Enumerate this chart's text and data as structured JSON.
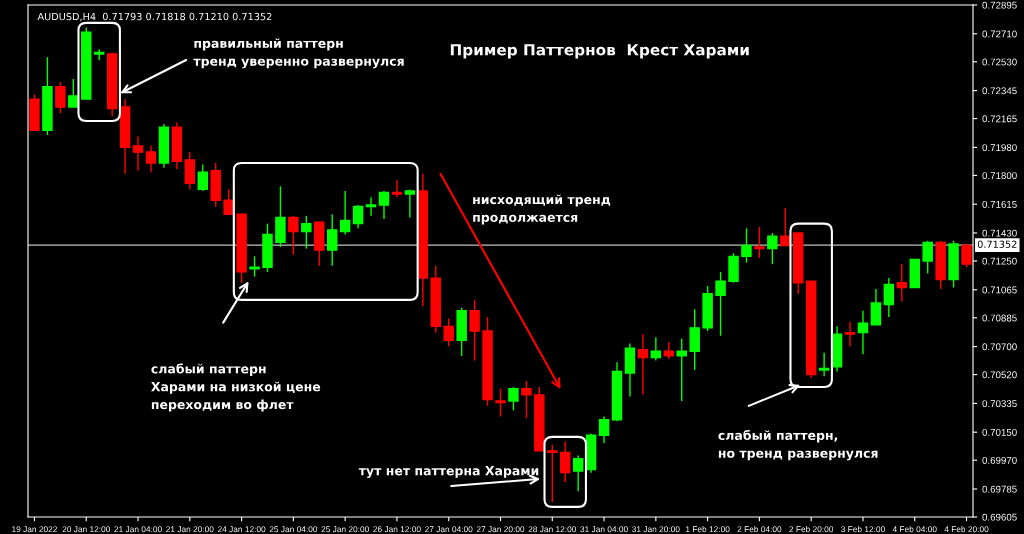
{
  "chart_data": {
    "type": "candlestick",
    "title": "Пример Паттернов  Крест Харами",
    "subtitle": "AUDUSD,H4  0.71793 0.71818 0.71210 0.71352",
    "categories": [
      "19 Jan 2022",
      null,
      null,
      null,
      "20 Jan 12:00",
      null,
      null,
      null,
      "21 Jan 04:00",
      null,
      null,
      null,
      "21 Jan 20:00",
      null,
      null,
      null,
      "24 Jan 12:00",
      null,
      null,
      null,
      "25 Jan 04:00",
      null,
      null,
      null,
      "25 Jan 20:00",
      null,
      null,
      null,
      "26 Jan 12:00",
      null,
      null,
      null,
      "27 Jan 04:00",
      null,
      null,
      null,
      "27 Jan 20:00",
      null,
      null,
      null,
      "28 Jan 12:00",
      null,
      null,
      null,
      "31 Jan 04:00",
      null,
      null,
      null,
      "31 Jan 20:00",
      null,
      null,
      null,
      "1 Feb 12:00",
      null,
      null,
      null,
      "2 Feb 04:00",
      null,
      null,
      null,
      "2 Feb 20:00",
      null,
      null,
      null,
      "3 Feb 12:00",
      null,
      null,
      null,
      "4 Feb 04:00",
      null,
      null,
      null,
      "4 Feb 20:00"
    ],
    "ohlc": [
      [
        0.7229,
        0.7232,
        0.7209,
        0.7209
      ],
      [
        0.7209,
        0.7256,
        0.7206,
        0.7237
      ],
      [
        0.7237,
        0.724,
        0.722,
        0.7224
      ],
      [
        0.7224,
        0.7242,
        0.7224,
        0.7231
      ],
      [
        0.7229,
        0.7275,
        0.7229,
        0.7272
      ],
      [
        0.7258,
        0.7261,
        0.7254,
        0.7259
      ],
      [
        0.7258,
        0.7259,
        0.7218,
        0.7223
      ],
      [
        0.7224,
        0.7229,
        0.7181,
        0.7198
      ],
      [
        0.7199,
        0.7205,
        0.7183,
        0.7195
      ],
      [
        0.7195,
        0.7199,
        0.7182,
        0.7188
      ],
      [
        0.7188,
        0.7213,
        0.7185,
        0.7211
      ],
      [
        0.7211,
        0.7214,
        0.7184,
        0.7189
      ],
      [
        0.719,
        0.7195,
        0.7171,
        0.7175
      ],
      [
        0.7171,
        0.7187,
        0.717,
        0.7182
      ],
      [
        0.7183,
        0.7188,
        0.716,
        0.7164
      ],
      [
        0.7164,
        0.7171,
        0.7155,
        0.7155
      ],
      [
        0.7155,
        0.7155,
        0.7111,
        0.7118
      ],
      [
        0.712,
        0.7128,
        0.7115,
        0.7121
      ],
      [
        0.7121,
        0.7149,
        0.7118,
        0.7142
      ],
      [
        0.7137,
        0.7173,
        0.7134,
        0.7153
      ],
      [
        0.7153,
        0.7154,
        0.7129,
        0.7144
      ],
      [
        0.7144,
        0.7154,
        0.7133,
        0.7149
      ],
      [
        0.715,
        0.715,
        0.7122,
        0.7132
      ],
      [
        0.7132,
        0.7155,
        0.7122,
        0.7145
      ],
      [
        0.7144,
        0.717,
        0.7142,
        0.7151
      ],
      [
        0.7149,
        0.7161,
        0.7146,
        0.716
      ],
      [
        0.716,
        0.7166,
        0.7154,
        0.7161
      ],
      [
        0.7161,
        0.717,
        0.7152,
        0.7169
      ],
      [
        0.7169,
        0.7177,
        0.7166,
        0.7168
      ],
      [
        0.7168,
        0.7171,
        0.7153,
        0.717
      ],
      [
        0.717,
        0.7181,
        0.7096,
        0.7114
      ],
      [
        0.7114,
        0.7122,
        0.7079,
        0.7083
      ],
      [
        0.7083,
        0.7088,
        0.707,
        0.7074
      ],
      [
        0.7074,
        0.7095,
        0.7064,
        0.7093
      ],
      [
        0.7093,
        0.71,
        0.7061,
        0.708
      ],
      [
        0.708,
        0.7089,
        0.7032,
        0.7036
      ],
      [
        0.7035,
        0.7043,
        0.7025,
        0.7034
      ],
      [
        0.7035,
        0.7044,
        0.7029,
        0.7043
      ],
      [
        0.7043,
        0.7048,
        0.7024,
        0.7039
      ],
      [
        0.7039,
        0.7044,
        0.7003,
        0.7003
      ],
      [
        0.7003,
        0.7007,
        0.697,
        0.7002
      ],
      [
        0.7002,
        0.7009,
        0.6983,
        0.6989
      ],
      [
        0.699,
        0.7,
        0.6977,
        0.6998
      ],
      [
        0.6991,
        0.7014,
        0.6989,
        0.7013
      ],
      [
        0.7013,
        0.7025,
        0.7008,
        0.7023
      ],
      [
        0.7023,
        0.706,
        0.7022,
        0.7054
      ],
      [
        0.7053,
        0.7072,
        0.7038,
        0.7069
      ],
      [
        0.7068,
        0.7078,
        0.7039,
        0.7063
      ],
      [
        0.7063,
        0.7076,
        0.7061,
        0.7067
      ],
      [
        0.7067,
        0.7073,
        0.7062,
        0.7064
      ],
      [
        0.7064,
        0.7075,
        0.7035,
        0.7067
      ],
      [
        0.7067,
        0.7094,
        0.7055,
        0.7082
      ],
      [
        0.7082,
        0.7109,
        0.708,
        0.7104
      ],
      [
        0.7103,
        0.7118,
        0.7077,
        0.7112
      ],
      [
        0.7112,
        0.713,
        0.7111,
        0.7128
      ],
      [
        0.7128,
        0.7146,
        0.7124,
        0.7135
      ],
      [
        0.7134,
        0.7147,
        0.7127,
        0.7133
      ],
      [
        0.7133,
        0.7143,
        0.7123,
        0.7141
      ],
      [
        0.7141,
        0.7159,
        0.7135,
        0.7135
      ],
      [
        0.7143,
        0.7143,
        0.7104,
        0.7111
      ],
      [
        0.7112,
        0.7112,
        0.705,
        0.7052
      ],
      [
        0.7055,
        0.7066,
        0.7051,
        0.7056
      ],
      [
        0.7057,
        0.7083,
        0.7054,
        0.7078
      ],
      [
        0.7079,
        0.7086,
        0.707,
        0.7078
      ],
      [
        0.7079,
        0.7093,
        0.7065,
        0.7085
      ],
      [
        0.7084,
        0.7107,
        0.7084,
        0.7098
      ],
      [
        0.7097,
        0.7114,
        0.7089,
        0.711
      ],
      [
        0.7111,
        0.7123,
        0.7099,
        0.7108
      ],
      [
        0.7108,
        0.7126,
        0.7108,
        0.7126
      ],
      [
        0.7125,
        0.7138,
        0.7117,
        0.7137
      ],
      [
        0.7137,
        0.7138,
        0.7107,
        0.7113
      ],
      [
        0.7113,
        0.7138,
        0.7108,
        0.7136
      ],
      [
        0.7135,
        0.7136,
        0.7121,
        0.7123
      ]
    ],
    "ylim": [
      0.69605,
      0.72895
    ],
    "yticks": [
      {
        "value": 0.72895,
        "label": "0.72895"
      },
      {
        "value": 0.7271,
        "label": "0.72710"
      },
      {
        "value": 0.7253,
        "label": "0.72530"
      },
      {
        "value": 0.72345,
        "label": "0.72345"
      },
      {
        "value": 0.72165,
        "label": "0.72165"
      },
      {
        "value": 0.7198,
        "label": "0.71980"
      },
      {
        "value": 0.718,
        "label": "0.71800"
      },
      {
        "value": 0.71615,
        "label": "0.71615"
      },
      {
        "value": 0.7143,
        "label": "0.71430"
      },
      {
        "value": 0.7125,
        "label": "0.71250"
      },
      {
        "value": 0.71065,
        "label": "0.71065"
      },
      {
        "value": 0.70885,
        "label": "0.70885"
      },
      {
        "value": 0.707,
        "label": "0.70700"
      },
      {
        "value": 0.7052,
        "label": "0.70520"
      },
      {
        "value": 0.70335,
        "label": "0.70335"
      },
      {
        "value": 0.7015,
        "label": "0.70150"
      },
      {
        "value": 0.6997,
        "label": "0.69970"
      },
      {
        "value": 0.69785,
        "label": "0.69785"
      },
      {
        "value": 0.69605,
        "label": "0.69605"
      }
    ],
    "ref_lines": [
      {
        "axis": "y",
        "value": 0.71352,
        "label": "0.71352",
        "color": "#c0c0c0"
      }
    ],
    "grid": false,
    "annotations": [
      "правильный паттерн\nтренд уверенно развернулся",
      "нисходящий тренд\nпродолжается",
      "слабый паттерн\nХарами на низкой цене\nпереходим во флет",
      "тут нет паттерна Харами",
      "слабый паттерн,\nно тренд развернулся"
    ]
  }
}
